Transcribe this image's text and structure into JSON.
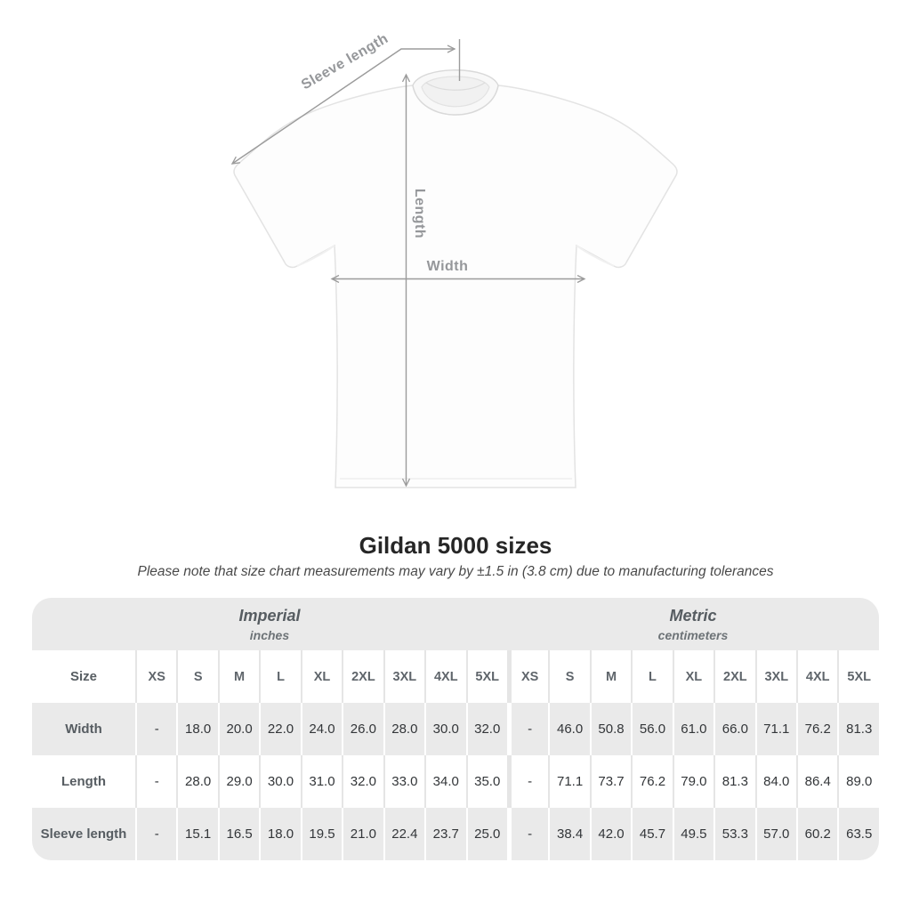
{
  "diagram": {
    "sleeve_length_label": "Sleeve length",
    "length_label": "Length",
    "width_label": "Width"
  },
  "header": {
    "title": "Gildan 5000 sizes",
    "subtitle": "Please note that size chart measurements may vary by ±1.5 in (3.8 cm) due to manufacturing tolerances"
  },
  "table": {
    "groups": [
      {
        "label": "Imperial",
        "unit": "inches"
      },
      {
        "label": "Metric",
        "unit": "centimeters"
      }
    ],
    "size_header_label": "Size",
    "sizes": [
      "XS",
      "S",
      "M",
      "L",
      "XL",
      "2XL",
      "3XL",
      "4XL",
      "5XL"
    ],
    "rows": [
      {
        "label": "Width",
        "imperial": [
          "-",
          "18.0",
          "20.0",
          "22.0",
          "24.0",
          "26.0",
          "28.0",
          "30.0",
          "32.0"
        ],
        "metric": [
          "-",
          "46.0",
          "50.8",
          "56.0",
          "61.0",
          "66.0",
          "71.1",
          "76.2",
          "81.3"
        ]
      },
      {
        "label": "Length",
        "imperial": [
          "-",
          "28.0",
          "29.0",
          "30.0",
          "31.0",
          "32.0",
          "33.0",
          "34.0",
          "35.0"
        ],
        "metric": [
          "-",
          "71.1",
          "73.7",
          "76.2",
          "79.0",
          "81.3",
          "84.0",
          "86.4",
          "89.0"
        ]
      },
      {
        "label": "Sleeve length",
        "imperial": [
          "-",
          "15.1",
          "16.5",
          "18.0",
          "19.5",
          "21.0",
          "22.4",
          "23.7",
          "25.0"
        ],
        "metric": [
          "-",
          "38.4",
          "42.0",
          "45.7",
          "49.5",
          "53.3",
          "57.0",
          "60.2",
          "63.5"
        ]
      }
    ]
  },
  "colors": {
    "table_band_gray": "#eaeaea",
    "annotation_gray": "#9b9b9b",
    "title_text": "#262626"
  }
}
